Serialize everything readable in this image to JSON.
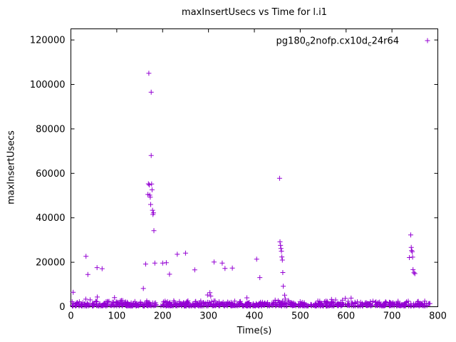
{
  "page": {
    "background": "#ffffff"
  },
  "chart_data": {
    "type": "scatter",
    "title": "maxInsertUsecs vs Time for l.i1",
    "xlabel": "Time(s)",
    "ylabel": "maxInsertUsecs",
    "xlim": [
      0,
      800
    ],
    "ylim": [
      0,
      125000
    ],
    "xticks": [
      0,
      100,
      200,
      300,
      400,
      500,
      600,
      700,
      800
    ],
    "yticks": [
      0,
      20000,
      40000,
      60000,
      80000,
      100000,
      120000
    ],
    "grid": false,
    "marker": {
      "symbol": "+",
      "color": "#9400D3",
      "size": 7
    },
    "legend": {
      "position": "top-right-inside",
      "label_plain": "pg180o2nofp.cx10dc24r64",
      "label_parts": [
        {
          "text": "pg180"
        },
        {
          "text": "o",
          "sub": true
        },
        {
          "text": "2nofp.cx10d"
        },
        {
          "text": "c",
          "sub": true
        },
        {
          "text": "24r64"
        }
      ]
    },
    "baseline_band": {
      "description": "dense noisy band of samples hugging the x axis",
      "seed": 1337,
      "count": 900,
      "x_start": 1,
      "x_end": 783,
      "y_min": 350,
      "y_max": 3000,
      "gap": [
        186,
        196
      ]
    },
    "outliers": [
      [
        5,
        6500
      ],
      [
        33,
        22700
      ],
      [
        37,
        14500
      ],
      [
        57,
        17600
      ],
      [
        68,
        17100
      ],
      [
        95,
        4100
      ],
      [
        158,
        8200
      ],
      [
        163,
        19200
      ],
      [
        168,
        50500
      ],
      [
        169,
        55300
      ],
      [
        170,
        105000
      ],
      [
        171,
        54800
      ],
      [
        172,
        50200
      ],
      [
        173,
        49300
      ],
      [
        174,
        46000
      ],
      [
        175,
        96500
      ],
      [
        175,
        68000
      ],
      [
        176,
        55200
      ],
      [
        177,
        52600
      ],
      [
        178,
        43400
      ],
      [
        179,
        41500
      ],
      [
        180,
        42200
      ],
      [
        181,
        34200
      ],
      [
        183,
        19600
      ],
      [
        200,
        19600
      ],
      [
        208,
        19800
      ],
      [
        215,
        14600
      ],
      [
        232,
        23600
      ],
      [
        250,
        24100
      ],
      [
        270,
        16600
      ],
      [
        298,
        5300
      ],
      [
        303,
        6300
      ],
      [
        305,
        4800
      ],
      [
        312,
        20100
      ],
      [
        330,
        19600
      ],
      [
        336,
        17200
      ],
      [
        352,
        17400
      ],
      [
        405,
        21400
      ],
      [
        412,
        13100
      ],
      [
        455,
        57800
      ],
      [
        456,
        29200
      ],
      [
        457,
        27600
      ],
      [
        458,
        26200
      ],
      [
        459,
        25000
      ],
      [
        460,
        22400
      ],
      [
        461,
        21000
      ],
      [
        462,
        15400
      ],
      [
        463,
        9200
      ],
      [
        466,
        5200
      ],
      [
        738,
        22100
      ],
      [
        741,
        32300
      ],
      [
        742,
        26700
      ],
      [
        743,
        25300
      ],
      [
        744,
        24700
      ],
      [
        745,
        22300
      ],
      [
        746,
        16700
      ],
      [
        748,
        15300
      ],
      [
        750,
        14900
      ]
    ]
  }
}
